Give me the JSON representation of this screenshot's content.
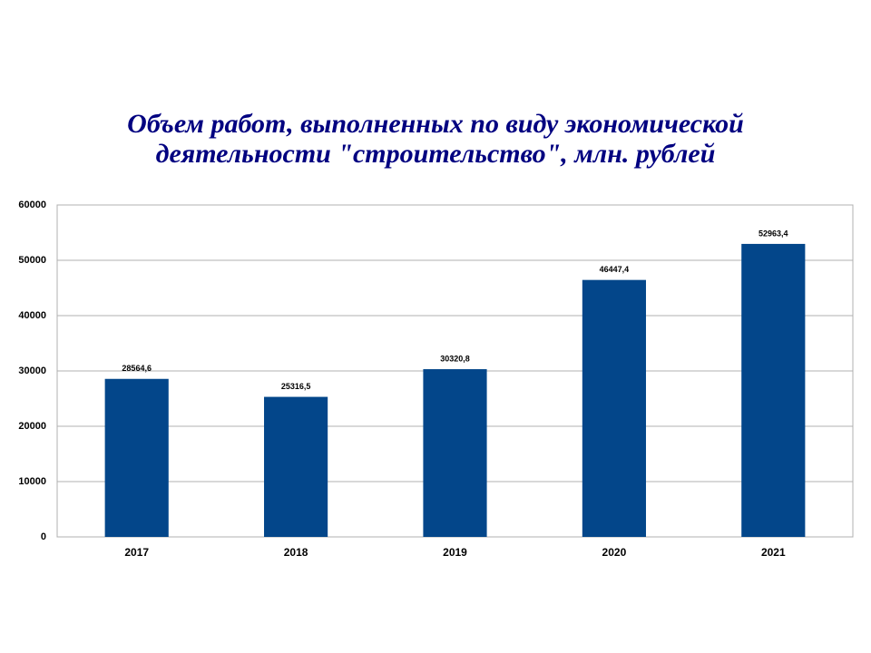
{
  "chart_data": {
    "type": "bar",
    "title": [
      "Объем работ, выполненных по виду экономической",
      "деятельности \"строительство\", млн. рублей"
    ],
    "categories": [
      "2017",
      "2018",
      "2019",
      "2020",
      "2021"
    ],
    "values": [
      28564.6,
      25316.5,
      30320.8,
      46447.4,
      52963.4
    ],
    "value_labels": [
      "28564,6",
      "25316,5",
      "30320,8",
      "46447,4",
      "52963,4"
    ],
    "color": "#03468a",
    "ylim": [
      0,
      60000
    ],
    "yticks": [
      0,
      10000,
      20000,
      30000,
      40000,
      50000,
      60000
    ],
    "grid": true
  }
}
